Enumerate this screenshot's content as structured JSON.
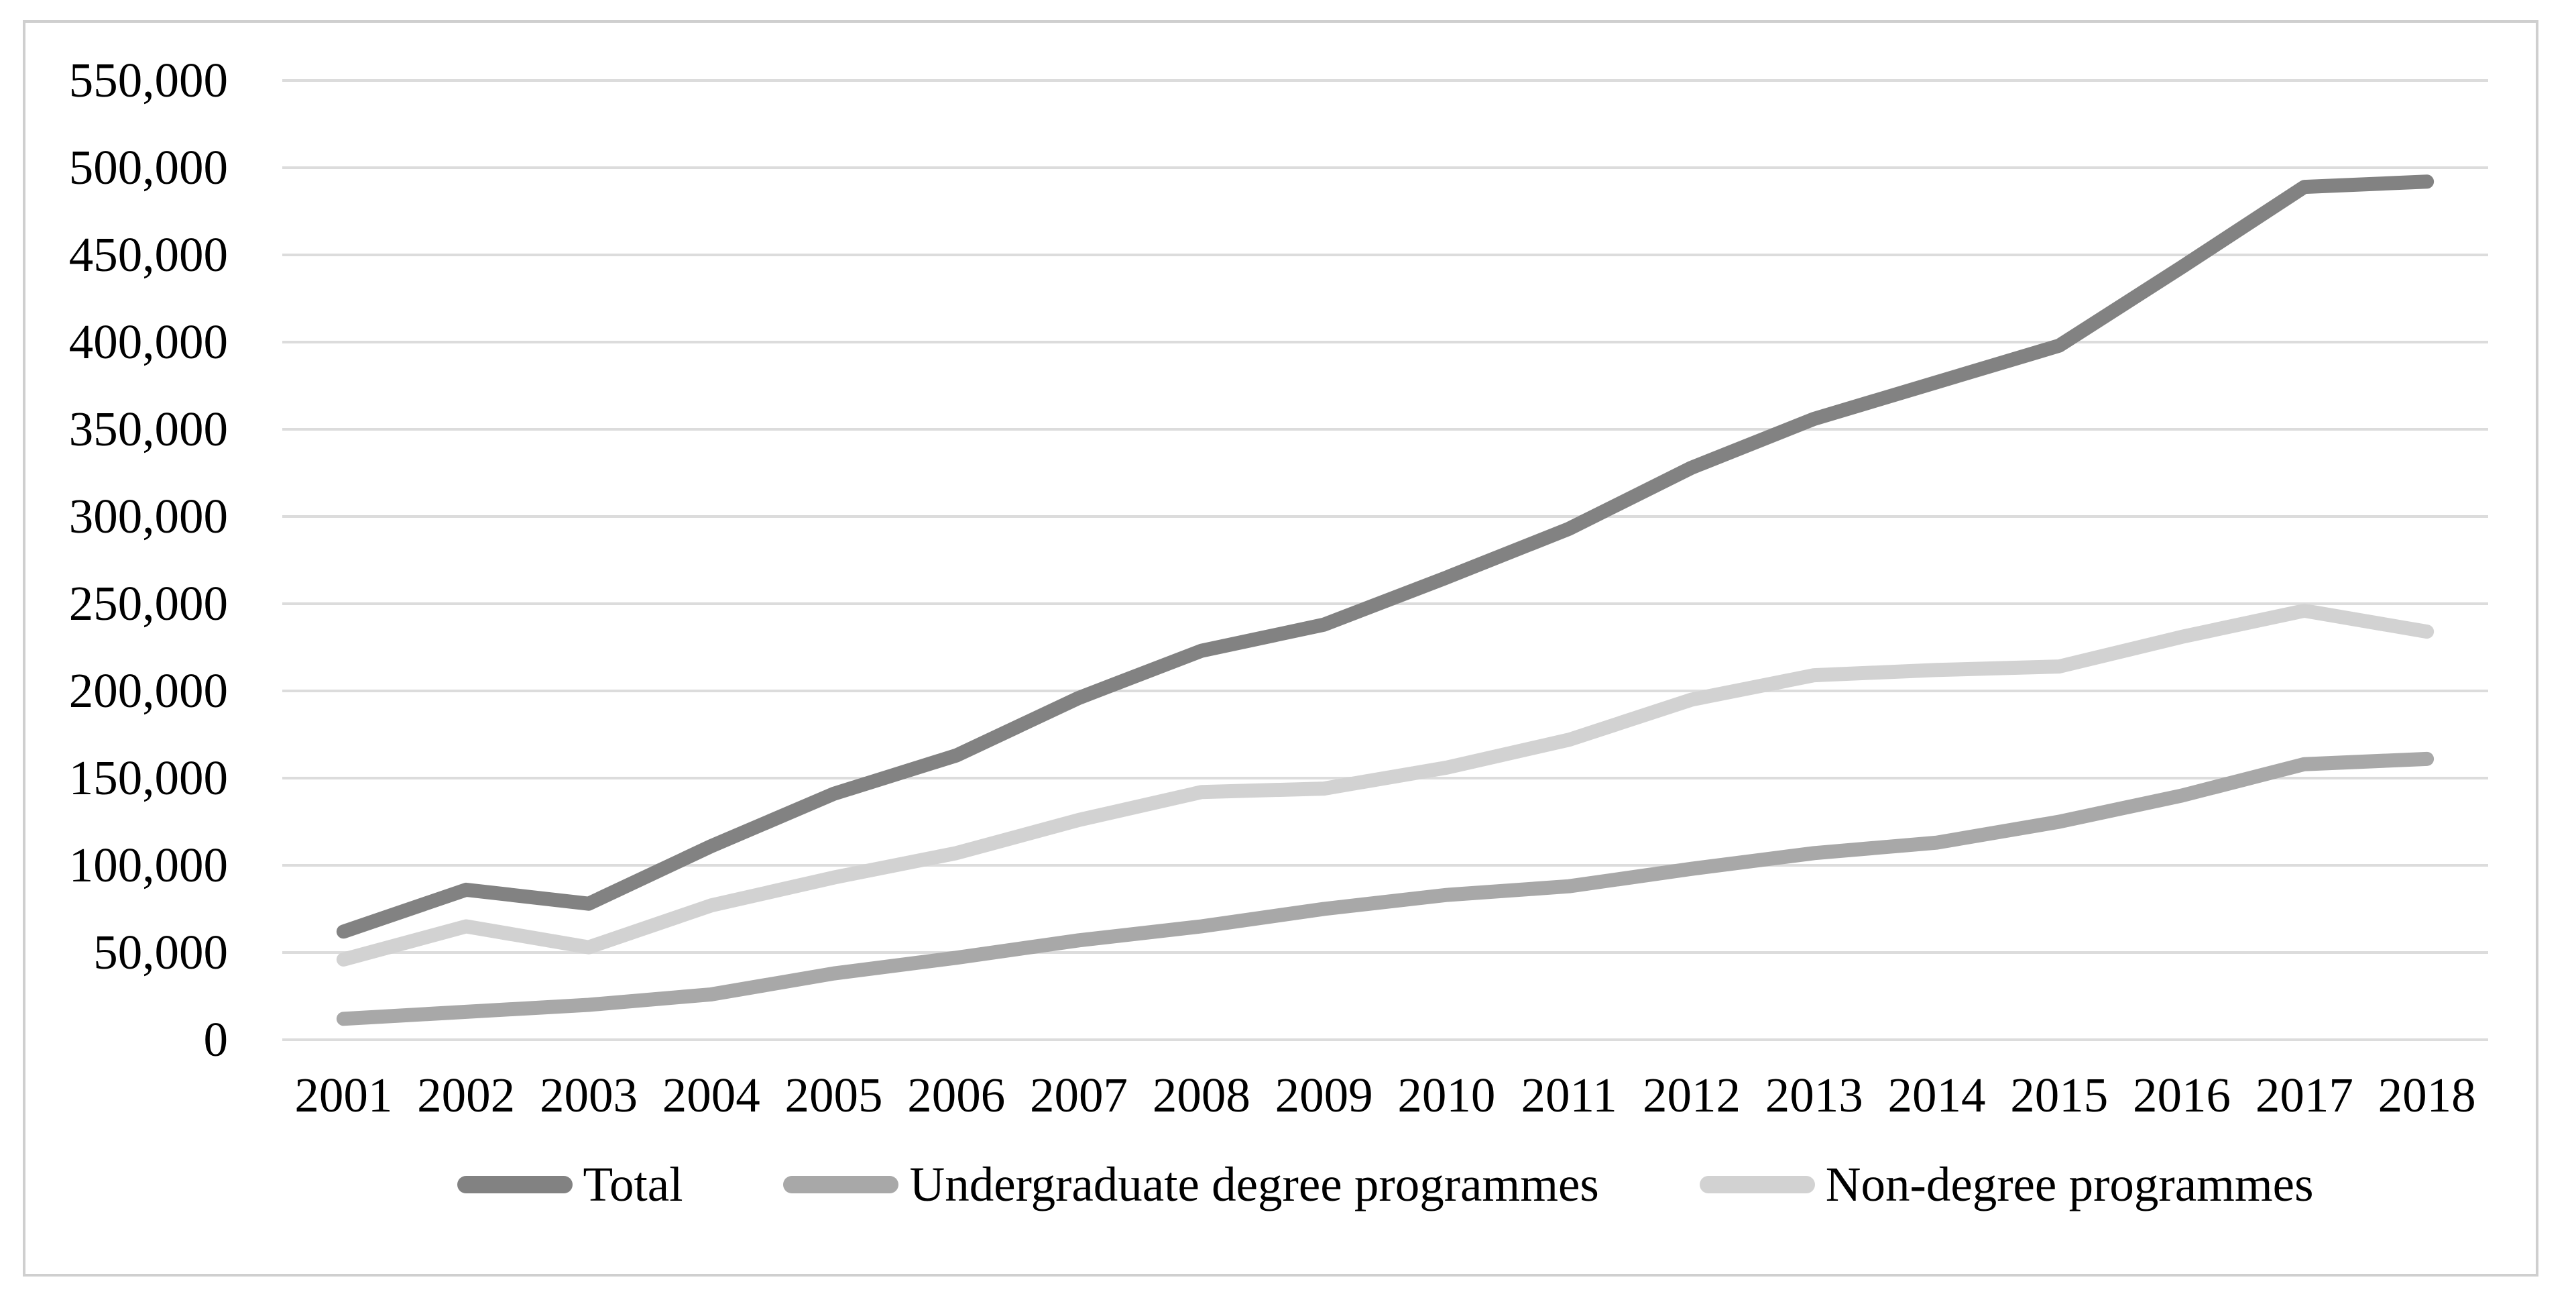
{
  "chart_data": {
    "type": "line",
    "title": "",
    "categories": [
      "2001",
      "2002",
      "2003",
      "2004",
      "2005",
      "2006",
      "2007",
      "2008",
      "2009",
      "2010",
      "2011",
      "2012",
      "2013",
      "2014",
      "2015",
      "2016",
      "2017",
      "2018"
    ],
    "series": [
      {
        "name": "Total",
        "color": "#828282",
        "values": [
          62000,
          86000,
          78000,
          111000,
          141000,
          163000,
          196000,
          223000,
          238000,
          265000,
          293000,
          328000,
          356000,
          377000,
          398000,
          443000,
          489000,
          492000
        ]
      },
      {
        "name": "Undergraduate degree programmes",
        "color": "#a8a8a8",
        "values": [
          12000,
          16000,
          20000,
          26000,
          38000,
          47000,
          57000,
          65000,
          75000,
          83000,
          88000,
          98000,
          107000,
          113000,
          125000,
          140000,
          158000,
          161000
        ]
      },
      {
        "name": "Non-degree programmes",
        "color": "#d2d2d2",
        "values": [
          46000,
          65000,
          53000,
          77000,
          93000,
          107000,
          126000,
          142000,
          144000,
          156000,
          172000,
          195000,
          209000,
          212000,
          214000,
          231000,
          246000,
          234000
        ]
      }
    ],
    "y_axis": {
      "min": 0,
      "max": 550000,
      "step": 50000,
      "tick_labels": [
        "0",
        "50,000",
        "100,000",
        "150,000",
        "200,000",
        "250,000",
        "300,000",
        "350,000",
        "400,000",
        "450,000",
        "500,000",
        "550,000"
      ]
    },
    "grid": true,
    "legend_position": "bottom",
    "colors": {
      "gridline": "#dcdcdc",
      "figure_border": "#cfcfcf",
      "text": "#000000",
      "background": "#ffffff"
    }
  }
}
